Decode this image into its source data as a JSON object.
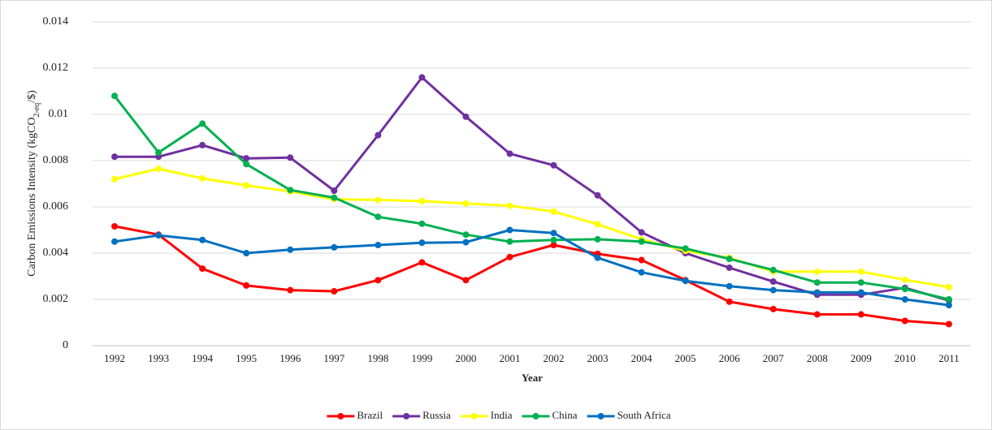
{
  "chart_data": {
    "type": "line",
    "y_label": [
      "Carbon Emissions Intensity (kgCO",
      "2-eq",
      "/$)"
    ],
    "x_label": "Year",
    "categories": [
      "1992",
      "1993",
      "1994",
      "1995",
      "1996",
      "1997",
      "1998",
      "1999",
      "2000",
      "2001",
      "2002",
      "2003",
      "2004",
      "2005",
      "2006",
      "2007",
      "2008",
      "2009",
      "2010",
      "2011"
    ],
    "ylim": [
      0,
      0.014
    ],
    "yticks": [
      0,
      0.002,
      0.004,
      0.006,
      0.008,
      0.01,
      0.012,
      0.014
    ],
    "grid": true,
    "legend": "bottom",
    "series": [
      {
        "name": "Brazil",
        "color": "#ff0000",
        "values": [
          0.00516,
          0.0048,
          0.00333,
          0.0026,
          0.0024,
          0.00235,
          0.00283,
          0.0036,
          0.00283,
          0.00383,
          0.00435,
          0.00397,
          0.0037,
          0.00283,
          0.0019,
          0.00158,
          0.00135,
          0.00135,
          0.00107,
          0.00093
        ]
      },
      {
        "name": "Russia",
        "color": "#7030a0",
        "values": [
          0.00817,
          0.00817,
          0.00867,
          0.0081,
          0.00813,
          0.0067,
          0.0091,
          0.0116,
          0.0099,
          0.0083,
          0.0078,
          0.0065,
          0.0049,
          0.004,
          0.00337,
          0.00277,
          0.0022,
          0.0022,
          0.0025,
          0.00195
        ]
      },
      {
        "name": "India",
        "color": "#ffff00",
        "values": [
          0.0072,
          0.00765,
          0.00723,
          0.00693,
          0.00667,
          0.00633,
          0.0063,
          0.00625,
          0.00615,
          0.00605,
          0.0058,
          0.00525,
          0.0046,
          0.0041,
          0.0038,
          0.0032,
          0.0032,
          0.0032,
          0.00285,
          0.00253
        ]
      },
      {
        "name": "China",
        "color": "#00b050",
        "values": [
          0.0108,
          0.00835,
          0.0096,
          0.00785,
          0.00673,
          0.0064,
          0.00557,
          0.00527,
          0.0048,
          0.0045,
          0.00457,
          0.0046,
          0.0045,
          0.0042,
          0.00375,
          0.00327,
          0.00273,
          0.00273,
          0.00245,
          0.002
        ]
      },
      {
        "name": "South Africa",
        "color": "#0070c0",
        "values": [
          0.0045,
          0.00477,
          0.00457,
          0.004,
          0.00415,
          0.00425,
          0.00435,
          0.00445,
          0.00447,
          0.005,
          0.00487,
          0.0038,
          0.00317,
          0.0028,
          0.00257,
          0.0024,
          0.0023,
          0.0023,
          0.002,
          0.00175
        ]
      }
    ]
  }
}
